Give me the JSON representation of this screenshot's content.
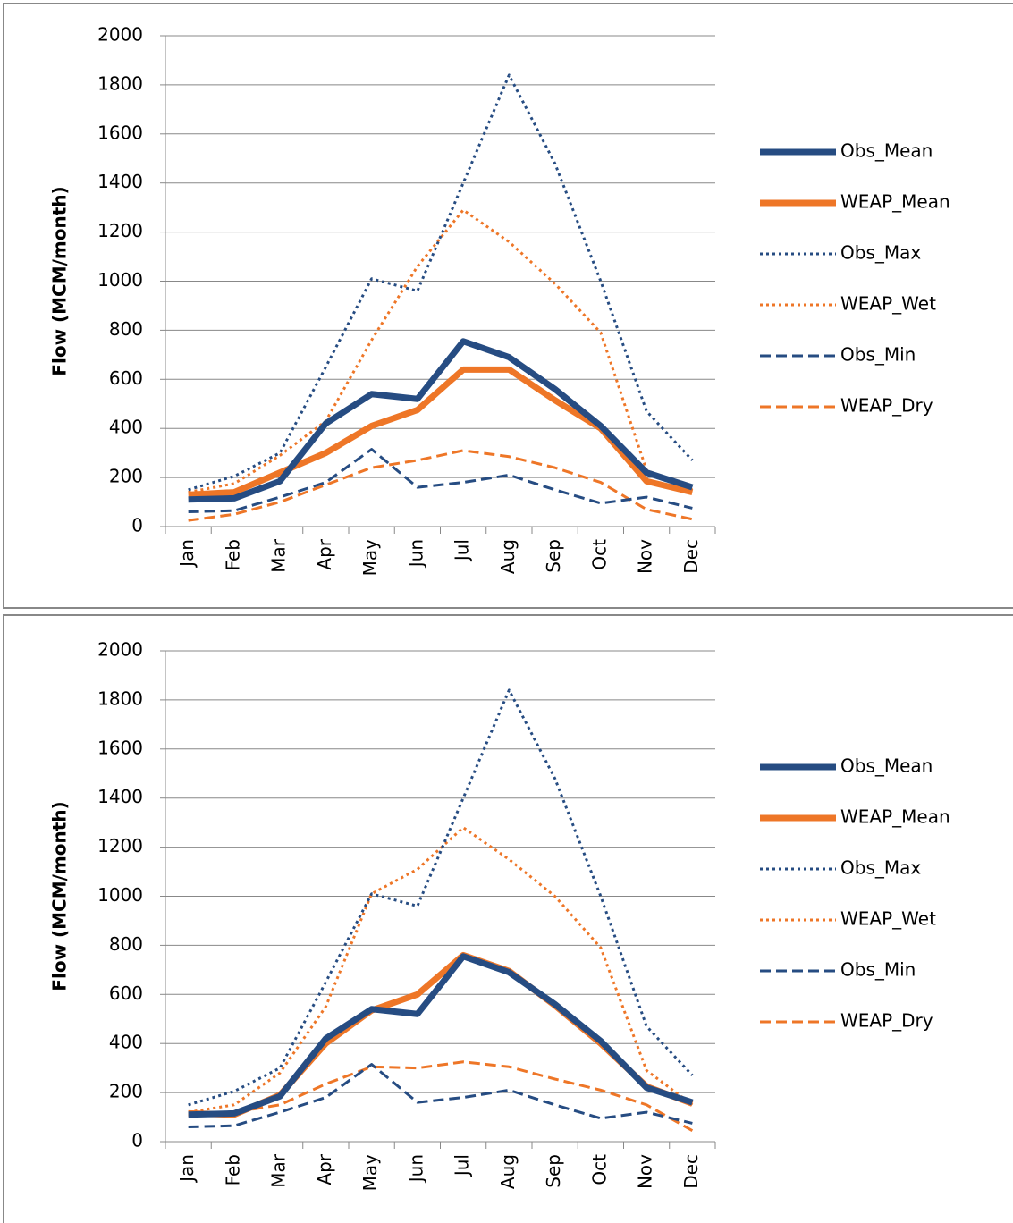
{
  "chart_data": [
    {
      "type": "line",
      "y_label": "Flow (MCM/month)",
      "categories": [
        "Jan",
        "Feb",
        "Mar",
        "Apr",
        "May",
        "Jun",
        "Jul",
        "Aug",
        "Sep",
        "Oct",
        "Nov",
        "Dec"
      ],
      "ylim": [
        0,
        2000
      ],
      "yticks": [
        0,
        200,
        400,
        600,
        800,
        1000,
        1200,
        1400,
        1600,
        1800,
        2000
      ],
      "grid": true,
      "series": [
        {
          "name": "Obs_Mean",
          "color": "#264c82",
          "style": "solid",
          "values": [
            110,
            115,
            185,
            420,
            540,
            520,
            755,
            690,
            560,
            410,
            220,
            160
          ]
        },
        {
          "name": "WEAP_Mean",
          "color": "#ee7627",
          "style": "solid",
          "values": [
            130,
            140,
            220,
            300,
            410,
            475,
            640,
            640,
            515,
            400,
            185,
            140
          ]
        },
        {
          "name": "Obs_Max",
          "color": "#264c82",
          "style": "dotted",
          "values": [
            150,
            205,
            300,
            650,
            1010,
            960,
            1400,
            1840,
            1480,
            1000,
            470,
            270
          ]
        },
        {
          "name": "WEAP_Wet",
          "color": "#ee7627",
          "style": "dotted",
          "values": [
            140,
            175,
            290,
            430,
            760,
            1060,
            1290,
            1160,
            990,
            790,
            230,
            150
          ]
        },
        {
          "name": "Obs_Min",
          "color": "#264c82",
          "style": "dashed",
          "values": [
            60,
            65,
            120,
            180,
            315,
            160,
            180,
            210,
            150,
            95,
            120,
            75
          ]
        },
        {
          "name": "WEAP_Dry",
          "color": "#ee7627",
          "style": "dashed",
          "values": [
            25,
            50,
            100,
            170,
            240,
            270,
            310,
            285,
            240,
            180,
            70,
            30
          ]
        }
      ]
    },
    {
      "type": "line",
      "y_label": "Flow (MCM/month)",
      "categories": [
        "Jan",
        "Feb",
        "Mar",
        "Apr",
        "May",
        "Jun",
        "Jul",
        "Aug",
        "Sep",
        "Oct",
        "Nov",
        "Dec"
      ],
      "ylim": [
        0,
        2000
      ],
      "yticks": [
        0,
        200,
        400,
        600,
        800,
        1000,
        1200,
        1400,
        1600,
        1800,
        2000
      ],
      "grid": true,
      "series": [
        {
          "name": "Obs_Mean",
          "color": "#264c82",
          "style": "solid",
          "values": [
            110,
            115,
            185,
            420,
            540,
            520,
            755,
            690,
            560,
            410,
            220,
            160
          ]
        },
        {
          "name": "WEAP_Mean",
          "color": "#ee7627",
          "style": "solid",
          "values": [
            115,
            110,
            190,
            400,
            535,
            600,
            760,
            695,
            555,
            400,
            225,
            155
          ]
        },
        {
          "name": "Obs_Max",
          "color": "#264c82",
          "style": "dotted",
          "values": [
            150,
            205,
            300,
            650,
            1010,
            960,
            1400,
            1840,
            1480,
            1000,
            470,
            270
          ]
        },
        {
          "name": "WEAP_Wet",
          "color": "#ee7627",
          "style": "dotted",
          "values": [
            120,
            150,
            280,
            550,
            1010,
            1110,
            1280,
            1150,
            1000,
            790,
            290,
            150
          ]
        },
        {
          "name": "Obs_Min",
          "color": "#264c82",
          "style": "dashed",
          "values": [
            60,
            65,
            120,
            180,
            315,
            160,
            180,
            210,
            150,
            95,
            120,
            75
          ]
        },
        {
          "name": "WEAP_Dry",
          "color": "#ee7627",
          "style": "dashed",
          "values": [
            110,
            120,
            150,
            235,
            305,
            300,
            325,
            305,
            255,
            210,
            150,
            45
          ]
        }
      ]
    }
  ]
}
